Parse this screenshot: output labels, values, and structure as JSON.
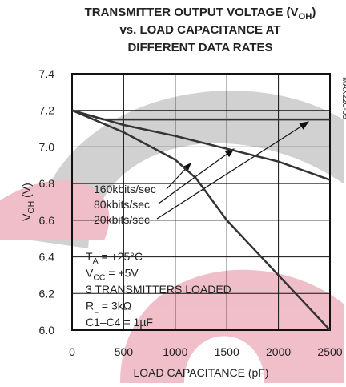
{
  "chart_data": {
    "type": "line",
    "title": [
      [
        "TRANSMITTER OUTPUT VOLTAGE (V",
        "OH",
        ")"
      ],
      [
        "vs. LOAD CAPACITANCE AT"
      ],
      [
        "DIFFERENT DATA RATES"
      ]
    ],
    "x_label": "LOAD CAPACITANCE (pF)",
    "y_label": [
      "V",
      "OH",
      " (V)"
    ],
    "figure_id": "MAX220-05",
    "xlim": [
      0,
      2500
    ],
    "xticks": [
      0,
      500,
      1000,
      1500,
      2000,
      2500
    ],
    "ylim": [
      6.0,
      7.4
    ],
    "yticks": [
      {
        "value": 6.0,
        "label": "6.0"
      },
      6.2,
      6.4,
      6.6,
      6.8,
      {
        "value": 7.0,
        "label": "7.0"
      },
      7.2,
      7.4
    ],
    "grid": true,
    "series": [
      {
        "name": "160kbits/sec",
        "color": "#333333",
        "x": [
          0,
          500,
          1000,
          1200,
          1500,
          2000,
          2500
        ],
        "values": [
          7.2,
          7.08,
          6.93,
          6.83,
          6.6,
          6.3,
          6.0
        ]
      },
      {
        "name": "80kbits/sec",
        "color": "#333333",
        "x": [
          0,
          500,
          1000,
          1500,
          2000,
          2500
        ],
        "values": [
          7.2,
          7.12,
          7.06,
          6.99,
          6.92,
          6.82
        ]
      },
      {
        "name": "20kbits/sec",
        "color": "#333333",
        "x": [
          0,
          300,
          2500
        ],
        "values": [
          7.2,
          7.15,
          7.15
        ]
      }
    ],
    "conditions": [
      [
        "T",
        "A",
        " = +25°C"
      ],
      [
        "V",
        "CC",
        " = +5V"
      ],
      [
        "3 TRANSMITTERS LOADED"
      ],
      [
        "R",
        "L",
        " = 3kΩ"
      ],
      [
        "C1–C4 = 1µF"
      ]
    ]
  }
}
